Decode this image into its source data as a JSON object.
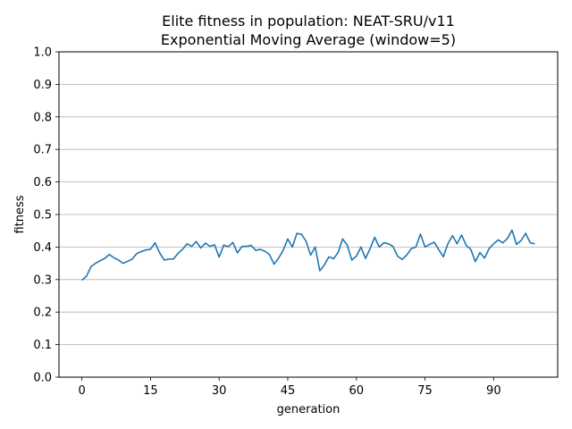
{
  "chart_data": {
    "type": "line",
    "title": "Elite fitness in population: NEAT-SRU/v11",
    "subtitle": "Exponential Moving Average (window=5)",
    "xlabel": "generation",
    "ylabel": "fitness",
    "xlim": [
      -5,
      104
    ],
    "ylim": [
      0.0,
      1.0
    ],
    "xticks": [
      0,
      15,
      30,
      45,
      60,
      75,
      90
    ],
    "yticks": [
      0.0,
      0.1,
      0.2,
      0.3,
      0.4,
      0.5,
      0.6,
      0.7,
      0.8,
      0.9,
      1.0
    ],
    "ytick_labels": [
      "0.0",
      "0.1",
      "0.2",
      "0.3",
      "0.4",
      "0.5",
      "0.6",
      "0.7",
      "0.8",
      "0.9",
      "1.0"
    ],
    "grid": "y",
    "line_color": "#1f77b4",
    "series": [
      {
        "x": [
          0,
          1,
          2,
          3,
          4,
          5,
          6,
          7,
          8,
          9,
          10,
          11,
          12,
          13,
          14,
          15,
          16,
          17,
          18,
          19,
          20,
          21,
          22,
          23,
          24,
          25,
          26,
          27,
          28,
          29,
          30,
          31,
          32,
          33,
          34,
          35,
          36,
          37,
          38,
          39,
          40,
          41,
          42,
          43,
          44,
          45,
          46,
          47,
          48,
          49,
          50,
          51,
          52,
          53,
          54,
          55,
          56,
          57,
          58,
          59,
          60,
          61,
          62,
          63,
          64,
          65,
          66,
          67,
          68,
          69,
          70,
          71,
          72,
          73,
          74,
          75,
          76,
          77,
          78,
          79,
          80,
          81,
          82,
          83,
          84,
          85,
          86,
          87,
          88,
          89,
          90,
          91,
          92,
          93,
          94,
          95,
          96,
          97,
          98,
          99
        ],
        "values": [
          0.298,
          0.31,
          0.34,
          0.35,
          0.358,
          0.365,
          0.377,
          0.367,
          0.36,
          0.35,
          0.356,
          0.363,
          0.38,
          0.386,
          0.391,
          0.393,
          0.413,
          0.382,
          0.36,
          0.363,
          0.363,
          0.38,
          0.393,
          0.41,
          0.402,
          0.417,
          0.397,
          0.412,
          0.402,
          0.407,
          0.369,
          0.406,
          0.401,
          0.414,
          0.382,
          0.402,
          0.402,
          0.405,
          0.39,
          0.393,
          0.387,
          0.377,
          0.347,
          0.366,
          0.39,
          0.425,
          0.4,
          0.442,
          0.439,
          0.418,
          0.375,
          0.4,
          0.327,
          0.345,
          0.37,
          0.364,
          0.383,
          0.425,
          0.406,
          0.36,
          0.372,
          0.4,
          0.365,
          0.395,
          0.43,
          0.4,
          0.413,
          0.41,
          0.402,
          0.372,
          0.362,
          0.375,
          0.395,
          0.4,
          0.44,
          0.4,
          0.408,
          0.415,
          0.392,
          0.37,
          0.41,
          0.435,
          0.41,
          0.437,
          0.405,
          0.393,
          0.355,
          0.383,
          0.366,
          0.395,
          0.41,
          0.422,
          0.413,
          0.426,
          0.452,
          0.408,
          0.42,
          0.442,
          0.413,
          0.41
        ]
      }
    ]
  }
}
